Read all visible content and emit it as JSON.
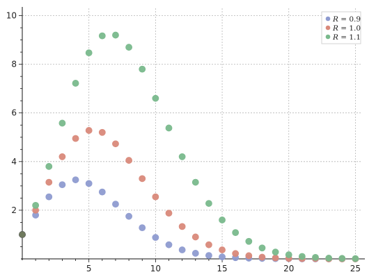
{
  "chart_data": {
    "type": "scatter",
    "title": "",
    "xlabel": "",
    "ylabel": "",
    "xlim": [
      0,
      25.5
    ],
    "ylim": [
      0,
      10.3
    ],
    "xticks": [
      5,
      10,
      15,
      20,
      25
    ],
    "yticks": [
      2,
      4,
      6,
      8,
      10
    ],
    "grid": true,
    "legend_position": "top-right",
    "series": [
      {
        "name": "R = 0.9",
        "label_var": "R",
        "label_value": "= 0.9",
        "color": "#8e9bd0",
        "x": [
          0,
          1,
          2,
          3,
          4,
          5,
          6,
          7,
          8,
          9,
          10,
          11,
          12,
          13,
          14,
          15,
          16,
          17,
          18,
          19,
          20,
          21,
          22,
          23,
          24,
          25
        ],
        "y": [
          1.0,
          1.8,
          2.55,
          3.05,
          3.25,
          3.1,
          2.75,
          2.25,
          1.75,
          1.28,
          0.88,
          0.58,
          0.37,
          0.23,
          0.14,
          0.08,
          0.05,
          0.03,
          0.02,
          0.01,
          0.01,
          0.0,
          0.0,
          0.0,
          0.0,
          0.0
        ]
      },
      {
        "name": "R = 1.0",
        "label_var": "R",
        "label_value": "= 1.0",
        "color": "#d9897a",
        "x": [
          0,
          1,
          2,
          3,
          4,
          5,
          6,
          7,
          8,
          9,
          10,
          11,
          12,
          13,
          14,
          15,
          16,
          17,
          18,
          19,
          20,
          21,
          22,
          23,
          24,
          25
        ],
        "y": [
          1.0,
          2.0,
          3.15,
          4.2,
          4.95,
          5.28,
          5.2,
          4.73,
          4.05,
          3.3,
          2.55,
          1.88,
          1.33,
          0.9,
          0.58,
          0.37,
          0.22,
          0.13,
          0.07,
          0.04,
          0.02,
          0.01,
          0.01,
          0.0,
          0.0,
          0.0
        ]
      },
      {
        "name": "R = 1.1",
        "label_var": "R",
        "label_value": "= 1.1",
        "color": "#79b98c",
        "x": [
          0,
          1,
          2,
          3,
          4,
          5,
          6,
          7,
          8,
          9,
          10,
          11,
          12,
          13,
          14,
          15,
          16,
          17,
          18,
          19,
          20,
          21,
          22,
          23,
          24,
          25
        ],
        "y": [
          1.0,
          2.2,
          3.8,
          5.58,
          7.22,
          8.47,
          9.17,
          9.2,
          8.7,
          7.8,
          6.6,
          5.38,
          4.2,
          3.15,
          2.28,
          1.6,
          1.08,
          0.72,
          0.45,
          0.28,
          0.17,
          0.1,
          0.06,
          0.03,
          0.02,
          0.01
        ]
      }
    ]
  }
}
